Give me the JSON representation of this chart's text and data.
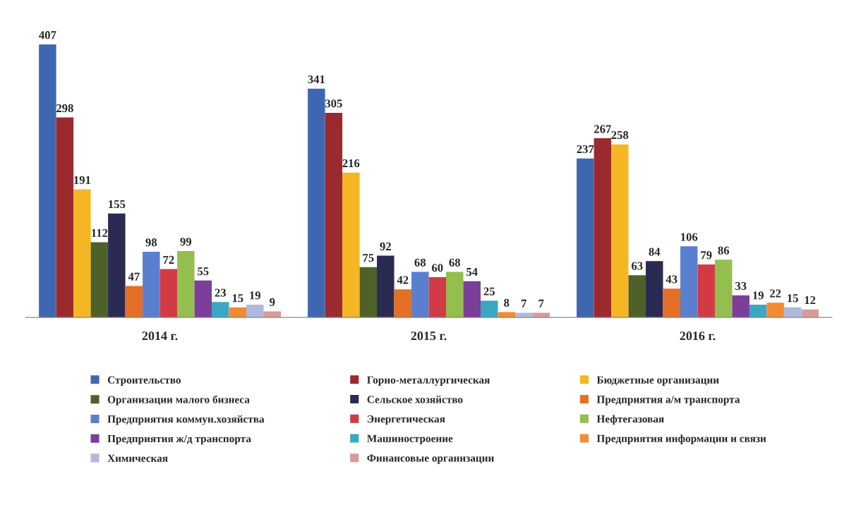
{
  "chart_data": {
    "type": "bar",
    "categories": [
      "2014 г.",
      "2015 г.",
      "2016 г."
    ],
    "series": [
      {
        "name": "Строительство",
        "color": "#3f67b1",
        "values": [
          407,
          341,
          237
        ]
      },
      {
        "name": "Горно-металлургическая",
        "color": "#9b2a2e",
        "values": [
          298,
          305,
          267
        ]
      },
      {
        "name": "Бюджетные организации",
        "color": "#f5b623",
        "values": [
          191,
          216,
          258
        ]
      },
      {
        "name": "Организации малого бизнеса",
        "color": "#4e6128",
        "values": [
          112,
          75,
          63
        ]
      },
      {
        "name": "Сельское хозяйство",
        "color": "#2b2a52",
        "values": [
          155,
          92,
          84
        ]
      },
      {
        "name": "Предприятия а/м транспорта",
        "color": "#e46f26",
        "values": [
          47,
          42,
          43
        ]
      },
      {
        "name": "Предприятия коммун.хозяйства",
        "color": "#5b7fcf",
        "values": [
          98,
          68,
          106
        ]
      },
      {
        "name": "Энергетическая",
        "color": "#d23b45",
        "values": [
          72,
          60,
          79
        ]
      },
      {
        "name": "Нефтегазовая",
        "color": "#94be4e",
        "values": [
          99,
          68,
          86
        ]
      },
      {
        "name": "Предприятия ж/д транспорта",
        "color": "#7b3e9a",
        "values": [
          55,
          54,
          33
        ]
      },
      {
        "name": "Машиностроение",
        "color": "#3aa7c2",
        "values": [
          23,
          25,
          19
        ]
      },
      {
        "name": "Предприятия информации и связи",
        "color": "#f48a30",
        "values": [
          15,
          8,
          22
        ]
      },
      {
        "name": "Химическая",
        "color": "#b0b8dc",
        "values": [
          19,
          7,
          15
        ]
      },
      {
        "name": "Финансовые организации",
        "color": "#d99a9a",
        "values": [
          9,
          7,
          12
        ]
      }
    ],
    "data_labels": true,
    "legend": "bottom",
    "tick_labels": "x"
  }
}
